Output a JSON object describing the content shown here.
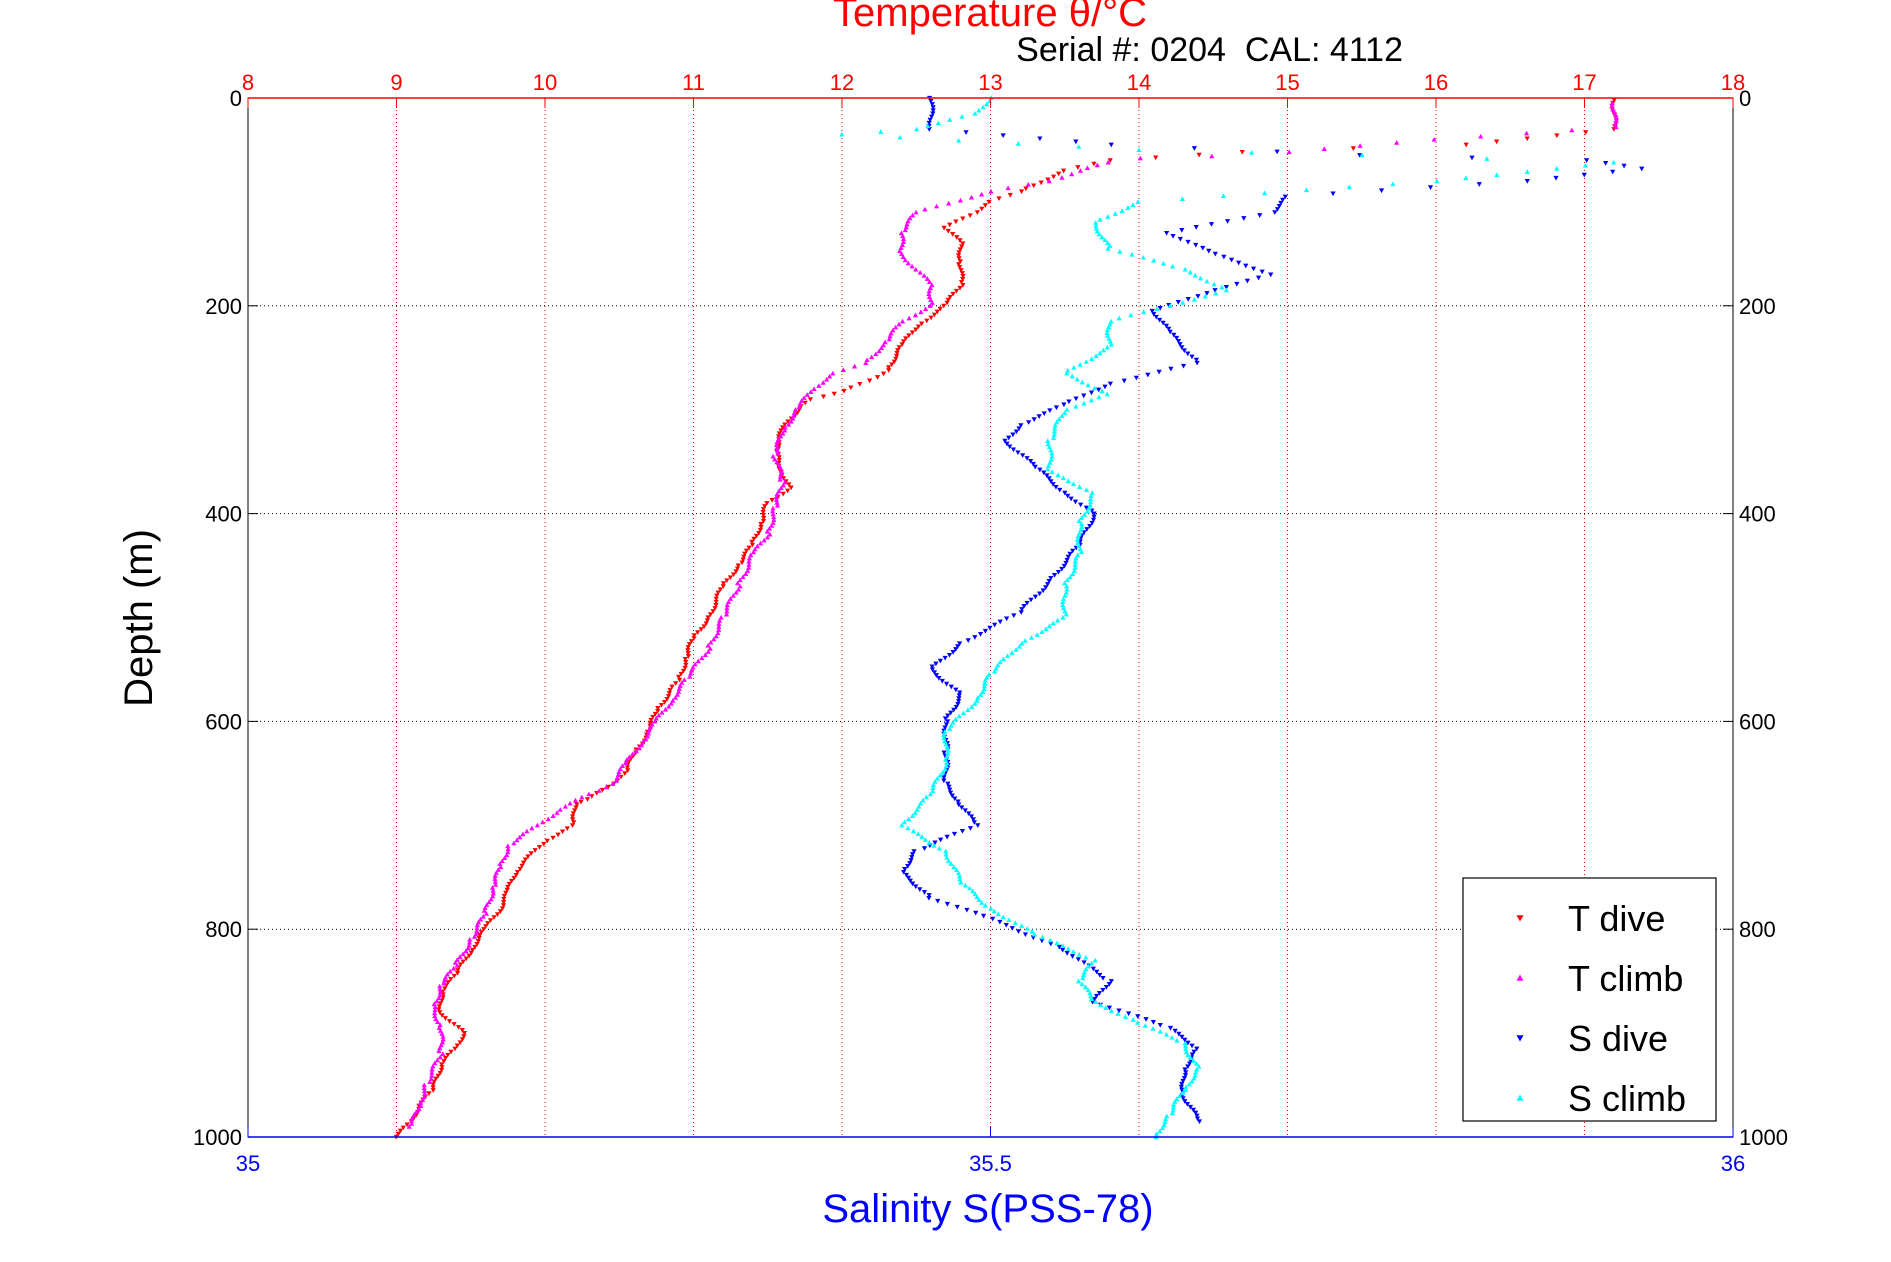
{
  "chart_data": {
    "type": "scatter",
    "title": "Temperature θ/°C",
    "annotation": "Serial #: 0204  CAL: 4112",
    "ylabel": "Depth (m)",
    "xlabel_bottom": "Salinity S(PSS-78)",
    "xlabel_top": "Temperature θ/°C",
    "ylim": [
      0,
      1000
    ],
    "y_reversed": true,
    "xlim_top": [
      8,
      18
    ],
    "xlim_bottom": [
      35,
      36
    ],
    "top_ticks": [
      "8",
      "9",
      "10",
      "11",
      "12",
      "13",
      "14",
      "15",
      "16",
      "17",
      "18"
    ],
    "bottom_ticks": [
      "35",
      "35.5",
      "36"
    ],
    "y_ticks": [
      "0",
      "200",
      "400",
      "600",
      "800",
      "1000"
    ],
    "grid": true,
    "legend_position": "bottom-right",
    "colors": {
      "temperature_axis": "#ff0000",
      "salinity_axis": "#0000ff",
      "grid": "#000000"
    },
    "legend": [
      "T dive",
      "T climb",
      "S dive",
      "S climb"
    ],
    "series": [
      {
        "name": "T dive",
        "axis": "temperature",
        "color": "#ff0000",
        "marker": "triangle-down",
        "points": [
          [
            17.2,
            2
          ],
          [
            17.2,
            30
          ],
          [
            16.2,
            45
          ],
          [
            14.7,
            52
          ],
          [
            13.8,
            60
          ],
          [
            13.5,
            70
          ],
          [
            13.2,
            90
          ],
          [
            13.0,
            100
          ],
          [
            12.9,
            110
          ],
          [
            12.7,
            125
          ],
          [
            12.8,
            140
          ],
          [
            12.8,
            160
          ],
          [
            12.8,
            180
          ],
          [
            12.7,
            200
          ],
          [
            12.5,
            220
          ],
          [
            12.4,
            240
          ],
          [
            12.3,
            262
          ],
          [
            12.2,
            272
          ],
          [
            12.0,
            282
          ],
          [
            11.8,
            290
          ],
          [
            11.7,
            300
          ],
          [
            11.6,
            320
          ],
          [
            11.55,
            340
          ],
          [
            11.6,
            360
          ],
          [
            11.65,
            375
          ],
          [
            11.5,
            390
          ],
          [
            11.45,
            410
          ],
          [
            11.4,
            430
          ],
          [
            11.3,
            450
          ],
          [
            11.2,
            470
          ],
          [
            11.1,
            500
          ],
          [
            11.0,
            520
          ],
          [
            10.95,
            540
          ],
          [
            10.9,
            560
          ],
          [
            10.85,
            570
          ],
          [
            10.75,
            590
          ],
          [
            10.7,
            610
          ],
          [
            10.6,
            630
          ],
          [
            10.55,
            650
          ],
          [
            10.45,
            660
          ],
          [
            10.3,
            675
          ],
          [
            10.2,
            680
          ],
          [
            10.2,
            700
          ],
          [
            10.0,
            715
          ],
          [
            9.9,
            730
          ],
          [
            9.8,
            745
          ],
          [
            9.75,
            765
          ],
          [
            9.7,
            780
          ],
          [
            9.6,
            800
          ],
          [
            9.5,
            820
          ],
          [
            9.4,
            845
          ],
          [
            9.3,
            860
          ],
          [
            9.3,
            880
          ],
          [
            9.45,
            900
          ],
          [
            9.4,
            915
          ],
          [
            9.3,
            930
          ],
          [
            9.25,
            955
          ],
          [
            9.15,
            970
          ],
          [
            9.1,
            985
          ],
          [
            9.0,
            1000
          ]
        ]
      },
      {
        "name": "T climb",
        "axis": "temperature",
        "color": "#ff00ff",
        "marker": "triangle-up",
        "points": [
          [
            17.2,
            5
          ],
          [
            17.2,
            28
          ],
          [
            16.0,
            40
          ],
          [
            15.0,
            52
          ],
          [
            14.5,
            56
          ],
          [
            14.0,
            58
          ],
          [
            13.8,
            62
          ],
          [
            13.6,
            70
          ],
          [
            13.4,
            80
          ],
          [
            13.0,
            90
          ],
          [
            12.5,
            110
          ],
          [
            12.4,
            130
          ],
          [
            12.4,
            150
          ],
          [
            12.5,
            165
          ],
          [
            12.6,
            180
          ],
          [
            12.6,
            200
          ],
          [
            12.4,
            215
          ],
          [
            12.3,
            235
          ],
          [
            12.15,
            255
          ],
          [
            11.95,
            265
          ],
          [
            11.8,
            280
          ],
          [
            11.7,
            300
          ],
          [
            11.6,
            320
          ],
          [
            11.55,
            345
          ],
          [
            11.6,
            370
          ],
          [
            11.55,
            395
          ],
          [
            11.5,
            420
          ],
          [
            11.4,
            440
          ],
          [
            11.3,
            470
          ],
          [
            11.2,
            500
          ],
          [
            11.1,
            530
          ],
          [
            10.95,
            560
          ],
          [
            10.85,
            580
          ],
          [
            10.75,
            600
          ],
          [
            10.65,
            620
          ],
          [
            10.55,
            640
          ],
          [
            10.45,
            660
          ],
          [
            10.3,
            670
          ],
          [
            10.1,
            685
          ],
          [
            9.95,
            700
          ],
          [
            9.75,
            720
          ],
          [
            9.7,
            740
          ],
          [
            9.65,
            760
          ],
          [
            9.6,
            785
          ],
          [
            9.5,
            810
          ],
          [
            9.4,
            835
          ],
          [
            9.3,
            855
          ],
          [
            9.25,
            875
          ],
          [
            9.3,
            895
          ],
          [
            9.3,
            920
          ],
          [
            9.2,
            950
          ],
          [
            9.15,
            970
          ],
          [
            9.1,
            990
          ]
        ]
      },
      {
        "name": "S dive",
        "axis": "salinity",
        "color": "#0000ff",
        "marker": "triangle-down",
        "points": [
          [
            35.46,
            0
          ],
          [
            35.46,
            15
          ],
          [
            35.46,
            30
          ],
          [
            35.58,
            45
          ],
          [
            35.75,
            55
          ],
          [
            35.9,
            60
          ],
          [
            35.94,
            68
          ],
          [
            35.86,
            80
          ],
          [
            35.7,
            95
          ],
          [
            35.69,
            110
          ],
          [
            35.62,
            130
          ],
          [
            35.65,
            150
          ],
          [
            35.69,
            170
          ],
          [
            35.65,
            185
          ],
          [
            35.61,
            205
          ],
          [
            35.62,
            225
          ],
          [
            35.64,
            255
          ],
          [
            35.58,
            275
          ],
          [
            35.55,
            295
          ],
          [
            35.52,
            315
          ],
          [
            35.51,
            330
          ],
          [
            35.53,
            355
          ],
          [
            35.55,
            380
          ],
          [
            35.57,
            400
          ],
          [
            35.56,
            430
          ],
          [
            35.54,
            465
          ],
          [
            35.52,
            495
          ],
          [
            35.48,
            525
          ],
          [
            35.46,
            550
          ],
          [
            35.48,
            575
          ],
          [
            35.47,
            600
          ],
          [
            35.47,
            630
          ],
          [
            35.47,
            660
          ],
          [
            35.48,
            680
          ],
          [
            35.49,
            700
          ],
          [
            35.45,
            725
          ],
          [
            35.44,
            745
          ],
          [
            35.46,
            770
          ],
          [
            35.5,
            790
          ],
          [
            35.55,
            820
          ],
          [
            35.58,
            850
          ],
          [
            35.57,
            870
          ],
          [
            35.62,
            895
          ],
          [
            35.64,
            915
          ],
          [
            35.63,
            935
          ],
          [
            35.63,
            960
          ],
          [
            35.64,
            985
          ]
        ]
      },
      {
        "name": "S climb",
        "axis": "salinity",
        "color": "#00ffff",
        "marker": "triangle-up",
        "points": [
          [
            35.5,
            0
          ],
          [
            35.49,
            15
          ],
          [
            35.45,
            30
          ],
          [
            35.4,
            35
          ],
          [
            35.6,
            50
          ],
          [
            35.75,
            55
          ],
          [
            35.92,
            62
          ],
          [
            35.8,
            80
          ],
          [
            35.6,
            100
          ],
          [
            35.57,
            120
          ],
          [
            35.58,
            145
          ],
          [
            35.63,
            165
          ],
          [
            35.66,
            185
          ],
          [
            35.58,
            215
          ],
          [
            35.58,
            240
          ],
          [
            35.55,
            265
          ],
          [
            35.58,
            285
          ],
          [
            35.55,
            300
          ],
          [
            35.54,
            330
          ],
          [
            35.54,
            360
          ],
          [
            35.57,
            380
          ],
          [
            35.56,
            410
          ],
          [
            35.56,
            440
          ],
          [
            35.55,
            470
          ],
          [
            35.55,
            500
          ],
          [
            35.52,
            525
          ],
          [
            35.5,
            555
          ],
          [
            35.49,
            580
          ],
          [
            35.47,
            610
          ],
          [
            35.47,
            640
          ],
          [
            35.46,
            670
          ],
          [
            35.44,
            700
          ],
          [
            35.47,
            725
          ],
          [
            35.48,
            755
          ],
          [
            35.5,
            780
          ],
          [
            35.53,
            805
          ],
          [
            35.57,
            830
          ],
          [
            35.56,
            850
          ],
          [
            35.57,
            870
          ],
          [
            35.6,
            890
          ],
          [
            35.63,
            910
          ],
          [
            35.64,
            935
          ],
          [
            35.63,
            955
          ],
          [
            35.62,
            980
          ],
          [
            35.61,
            1000
          ]
        ]
      }
    ]
  }
}
